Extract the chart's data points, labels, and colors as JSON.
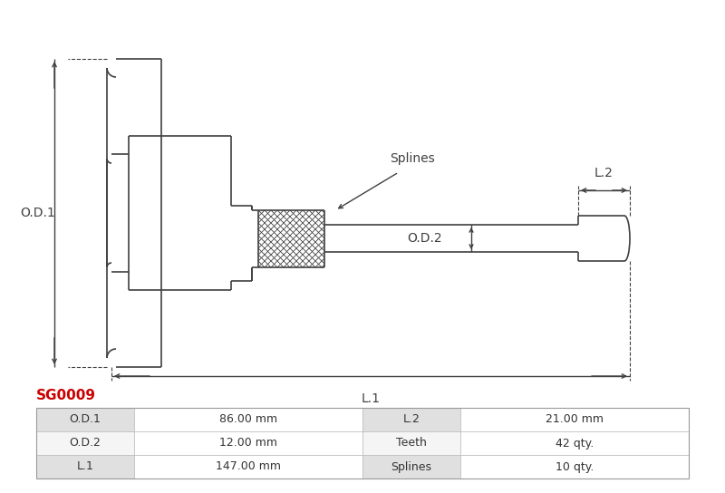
{
  "title": "SG0009",
  "title_color": "#cc0000",
  "bg_color": "#ffffff",
  "line_color": "#404040",
  "table_data": {
    "col1_labels": [
      "O.D.1",
      "O.D.2",
      "L.1"
    ],
    "col1_values": [
      "86.00 mm",
      "12.00 mm",
      "147.00 mm"
    ],
    "col2_labels": [
      "L.2",
      "Teeth",
      "Splines"
    ],
    "col2_values": [
      "21.00 mm",
      "42 qty.",
      "10 qty."
    ]
  },
  "dim_labels": {
    "OD1": "O.D.1",
    "OD2": "O.D.2",
    "L1": "L.1",
    "L2": "L.2",
    "Splines": "Splines"
  }
}
